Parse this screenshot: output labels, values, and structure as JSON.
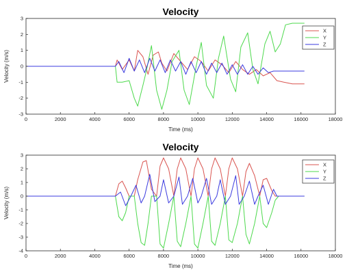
{
  "chart_data": [
    {
      "type": "line",
      "title": "Velocity",
      "xlabel": "Time (ms)",
      "ylabel": "Velocity (m/s)",
      "xlim": [
        0,
        18000
      ],
      "ylim": [
        -3,
        3
      ],
      "xticks": [
        0,
        2000,
        4000,
        6000,
        8000,
        10000,
        12000,
        14000,
        16000,
        18000
      ],
      "yticks": [
        -3,
        -2,
        -1,
        0,
        1,
        2,
        3
      ],
      "grid": false,
      "legend_position": "top-right",
      "series": [
        {
          "name": "X",
          "color": "#d9534f",
          "x": [
            0,
            5200,
            5300,
            5600,
            6000,
            6300,
            6500,
            6800,
            7100,
            7400,
            7700,
            7900,
            8200,
            8600,
            9000,
            9400,
            9800,
            10200,
            10600,
            11000,
            11400,
            11800,
            12200,
            12600,
            13000,
            13400,
            13800,
            14200,
            14600,
            15000,
            15500,
            16200
          ],
          "values": [
            0,
            0,
            0.4,
            -0.2,
            0.4,
            -0.3,
            1.0,
            0.6,
            -0.5,
            0.7,
            0.9,
            0.2,
            -0.3,
            0.8,
            0.3,
            -0.2,
            0.6,
            0.3,
            -0.3,
            0.4,
            0.1,
            -0.4,
            0.3,
            -0.2,
            -0.5,
            -0.2,
            -0.6,
            -0.4,
            -0.9,
            -1.0,
            -1.1,
            -1.1
          ]
        },
        {
          "name": "Y",
          "color": "#4cd94c",
          "x": [
            0,
            5200,
            5300,
            5600,
            6000,
            6300,
            6500,
            6800,
            7000,
            7300,
            7600,
            7900,
            8200,
            8500,
            8900,
            9200,
            9500,
            9900,
            10200,
            10500,
            10900,
            11200,
            11500,
            11900,
            12200,
            12500,
            12900,
            13200,
            13500,
            13900,
            14200,
            14500,
            14800,
            15100,
            15500,
            16200
          ],
          "values": [
            0,
            0,
            -1.0,
            -1.0,
            -0.9,
            -2.0,
            -2.5,
            -1.2,
            -0.3,
            1.3,
            -1.5,
            -2.7,
            -1.5,
            0.3,
            1.0,
            -1.5,
            -2.4,
            0.0,
            1.5,
            -1.2,
            -2.0,
            0.5,
            1.9,
            -0.8,
            -1.6,
            1.2,
            2.1,
            -0.2,
            -1.1,
            1.4,
            2.2,
            0.9,
            1.4,
            2.6,
            2.7,
            2.7
          ]
        },
        {
          "name": "Z",
          "color": "#3a3adf",
          "x": [
            0,
            5200,
            5400,
            5700,
            6000,
            6300,
            6600,
            6900,
            7200,
            7500,
            7800,
            8100,
            8400,
            8700,
            9000,
            9300,
            9600,
            9900,
            10200,
            10500,
            10800,
            11100,
            11400,
            11700,
            12000,
            12300,
            12600,
            12900,
            13200,
            13500,
            13800,
            14100,
            14400,
            14700,
            15200,
            16200
          ],
          "values": [
            0,
            0,
            0.3,
            -0.4,
            0.5,
            -0.3,
            0.4,
            -0.4,
            0.5,
            -0.3,
            0.4,
            -0.4,
            0.4,
            -0.3,
            0.3,
            -0.5,
            0.3,
            -0.4,
            0.3,
            -0.5,
            0.2,
            -0.4,
            0.2,
            -0.5,
            0.1,
            -0.5,
            0.1,
            -0.5,
            0.0,
            -0.5,
            -0.1,
            -0.4,
            -0.3,
            -0.3,
            -0.3,
            -0.3
          ]
        }
      ]
    },
    {
      "type": "line",
      "title": "Velocity",
      "xlabel": "Time (ms)",
      "ylabel": "Velocity (m/s)",
      "xlim": [
        0,
        18000
      ],
      "ylim": [
        -4,
        3
      ],
      "xticks": [
        0,
        2000,
        4000,
        6000,
        8000,
        10000,
        12000,
        14000,
        16000,
        18000
      ],
      "yticks": [
        -4,
        -3,
        -2,
        -1,
        0,
        1,
        2,
        3
      ],
      "grid": false,
      "legend_position": "top-right",
      "series": [
        {
          "name": "X",
          "color": "#d9534f",
          "x": [
            0,
            5200,
            5400,
            5600,
            5800,
            6000,
            6300,
            6500,
            6800,
            7000,
            7300,
            7600,
            7800,
            8000,
            8300,
            8600,
            8800,
            9000,
            9300,
            9600,
            9800,
            10000,
            10300,
            10600,
            10800,
            11000,
            11300,
            11600,
            11800,
            12000,
            12300,
            12600,
            12800,
            13000,
            13300,
            13600,
            13800,
            14000,
            14300,
            14500,
            14700,
            16200
          ],
          "values": [
            0,
            0,
            0.9,
            1.1,
            0.6,
            0,
            0,
            1.2,
            2.5,
            2.6,
            0.5,
            0,
            2.2,
            2.8,
            2.0,
            0,
            2.0,
            2.8,
            2.0,
            0,
            2.0,
            2.8,
            2.0,
            0,
            2.0,
            2.8,
            2.0,
            0,
            2.0,
            2.8,
            2.0,
            0,
            1.8,
            2.4,
            1.5,
            0,
            1.2,
            1.3,
            0.4,
            0,
            0,
            0
          ]
        },
        {
          "name": "Y",
          "color": "#4cd94c",
          "x": [
            0,
            5200,
            5400,
            5600,
            5800,
            6000,
            6300,
            6500,
            6700,
            6900,
            7100,
            7300,
            7600,
            7800,
            8000,
            8300,
            8600,
            8800,
            9000,
            9300,
            9600,
            9800,
            10000,
            10300,
            10600,
            10800,
            11000,
            11300,
            11600,
            11800,
            12000,
            12300,
            12600,
            12800,
            13000,
            13300,
            13600,
            13800,
            14000,
            14300,
            14500,
            14700,
            16200
          ],
          "values": [
            0,
            0,
            -1.5,
            -1.8,
            -1.2,
            0,
            0,
            -2.0,
            -3.4,
            -3.6,
            -2.0,
            0,
            0,
            -3.5,
            -3.8,
            -2.0,
            0,
            -3.3,
            -3.7,
            -2.0,
            0,
            -3.5,
            -3.8,
            -2.0,
            0,
            -3.3,
            -3.6,
            -2.0,
            0,
            -3.2,
            -3.4,
            -2.0,
            0,
            -2.8,
            -3.5,
            -2.0,
            0,
            -2.0,
            -2.3,
            -1.2,
            -0.3,
            0,
            0
          ]
        },
        {
          "name": "Z",
          "color": "#3a3adf",
          "x": [
            0,
            5200,
            5500,
            5800,
            6100,
            6400,
            6700,
            6900,
            7200,
            7500,
            7800,
            8000,
            8300,
            8600,
            8900,
            9100,
            9400,
            9700,
            10000,
            10200,
            10500,
            10800,
            11100,
            11300,
            11600,
            11900,
            12200,
            12400,
            12700,
            13000,
            13300,
            13500,
            13800,
            14100,
            14400,
            14600,
            16200
          ],
          "values": [
            0,
            0,
            0.3,
            -0.7,
            0,
            0.8,
            -0.5,
            0,
            1.6,
            -0.4,
            0,
            1.2,
            -0.5,
            0,
            1.4,
            -0.6,
            0,
            1.3,
            -0.5,
            0,
            1.3,
            -0.6,
            0,
            1.2,
            -0.6,
            0,
            1.5,
            -0.6,
            0,
            1.1,
            -0.6,
            0,
            0.8,
            -0.6,
            0.5,
            0,
            0
          ]
        }
      ]
    }
  ]
}
